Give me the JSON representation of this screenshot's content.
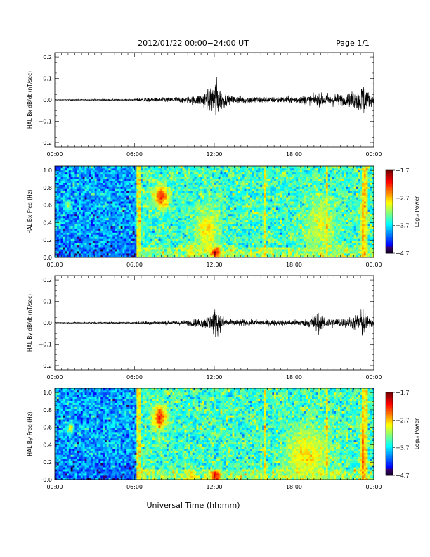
{
  "header": {
    "title": "2012/01/22  00:00−24:00 UT",
    "page": "Page 1/1"
  },
  "footer": {
    "xlabel": "Universal Time (hh:mm)"
  },
  "chart_data": [
    {
      "type": "line",
      "ylabel": "HAL Bx dB/dt (nT/sec)",
      "ylim": [
        -0.22,
        0.22
      ],
      "yticks": [
        -0.2,
        -0.1,
        0.0,
        0.1,
        0.2
      ],
      "ytick_labels": [
        "−0.2",
        "−0.1",
        "0.0",
        "0.1",
        "0.2"
      ],
      "xlim": [
        0,
        24
      ],
      "xticks": [
        0,
        6,
        12,
        18,
        24
      ],
      "xtick_labels": [
        "00:00",
        "06:00",
        "12:00",
        "18:00",
        "00:00"
      ],
      "series_color": "#000000",
      "activity": [
        {
          "t": 0,
          "amp": 0.001
        },
        {
          "t": 6.0,
          "amp": 0.002
        },
        {
          "t": 6.3,
          "amp": 0.004
        },
        {
          "t": 8.0,
          "amp": 0.005
        },
        {
          "t": 10.0,
          "amp": 0.008
        },
        {
          "t": 11.0,
          "amp": 0.014
        },
        {
          "t": 11.8,
          "amp": 0.03
        },
        {
          "t": 12.1,
          "amp": 0.055
        },
        {
          "t": 12.4,
          "amp": 0.03
        },
        {
          "t": 13.0,
          "amp": 0.01
        },
        {
          "t": 15.0,
          "amp": 0.008
        },
        {
          "t": 17.0,
          "amp": 0.007
        },
        {
          "t": 19.0,
          "amp": 0.01
        },
        {
          "t": 20.5,
          "amp": 0.016
        },
        {
          "t": 22.0,
          "amp": 0.012
        },
        {
          "t": 23.0,
          "amp": 0.03
        },
        {
          "t": 23.2,
          "amp": 0.045
        },
        {
          "t": 23.5,
          "amp": 0.02
        },
        {
          "t": 24.0,
          "amp": 0.01
        }
      ]
    },
    {
      "type": "heatmap",
      "ylabel": "HAL Bx Freq (Hz)",
      "ylim": [
        0,
        1.05
      ],
      "yticks": [
        0.0,
        0.2,
        0.4,
        0.6,
        0.8,
        1.0
      ],
      "ytick_labels": [
        "0.0",
        "0.2",
        "0.4",
        "0.6",
        "0.8",
        "1.0"
      ],
      "xlim": [
        0,
        24
      ],
      "xticks": [
        0,
        6,
        12,
        18,
        24
      ],
      "xtick_labels": [
        "00:00",
        "06:00",
        "12:00",
        "18:00",
        "00:00"
      ],
      "colorbar": {
        "label": "Log₁₀ Power",
        "range": [
          -4.7,
          -1.7
        ],
        "ticks": [
          -1.7,
          -2.7,
          -3.7,
          -4.7
        ],
        "tick_labels": [
          "−1.7",
          "−2.7",
          "−3.7",
          "−4.7"
        ]
      },
      "features": [
        {
          "t": 8.0,
          "f": 0.7,
          "dt": 0.5,
          "df": 0.12,
          "level": -2.1
        },
        {
          "t": 12.1,
          "f": 0.06,
          "dt": 0.35,
          "df": 0.06,
          "level": -1.9
        },
        {
          "t": 11.5,
          "f": 0.3,
          "dt": 0.8,
          "df": 0.25,
          "level": -2.8
        },
        {
          "t": 10.2,
          "f": 0.08,
          "dt": 0.2,
          "df": 0.08,
          "level": -2.7
        },
        {
          "t": 23.2,
          "f": 0.3,
          "dt": 0.2,
          "df": 0.5,
          "level": -2.6
        },
        {
          "t": 1.0,
          "f": 0.6,
          "dt": 0.25,
          "df": 0.05,
          "level": -3.0
        },
        {
          "t": 20.0,
          "f": 0.35,
          "dt": 1.2,
          "df": 0.3,
          "level": -3.0
        }
      ],
      "lines": [
        6.3,
        15.8,
        20.5,
        23.2,
        23.4
      ]
    },
    {
      "type": "line",
      "ylabel": "HAL By dB/dt (nT/sec)",
      "ylim": [
        -0.22,
        0.22
      ],
      "yticks": [
        -0.2,
        -0.1,
        0.0,
        0.1,
        0.2
      ],
      "ytick_labels": [
        "−0.2",
        "−0.1",
        "0.0",
        "0.1",
        "0.2"
      ],
      "xlim": [
        0,
        24
      ],
      "xticks": [
        0,
        6,
        12,
        18,
        24
      ],
      "xtick_labels": [
        "00:00",
        "06:00",
        "12:00",
        "18:00",
        "00:00"
      ],
      "series_color": "#000000",
      "activity": [
        {
          "t": 0,
          "amp": 0.001
        },
        {
          "t": 6.0,
          "amp": 0.002
        },
        {
          "t": 6.3,
          "amp": 0.004
        },
        {
          "t": 8.0,
          "amp": 0.004
        },
        {
          "t": 10.0,
          "amp": 0.006
        },
        {
          "t": 11.0,
          "amp": 0.01
        },
        {
          "t": 11.8,
          "amp": 0.02
        },
        {
          "t": 12.1,
          "amp": 0.035
        },
        {
          "t": 12.4,
          "amp": 0.02
        },
        {
          "t": 13.0,
          "amp": 0.008
        },
        {
          "t": 15.0,
          "amp": 0.007
        },
        {
          "t": 17.0,
          "amp": 0.006
        },
        {
          "t": 19.0,
          "amp": 0.008
        },
        {
          "t": 19.7,
          "amp": 0.025
        },
        {
          "t": 20.5,
          "amp": 0.012
        },
        {
          "t": 22.0,
          "amp": 0.01
        },
        {
          "t": 23.0,
          "amp": 0.025
        },
        {
          "t": 23.2,
          "amp": 0.04
        },
        {
          "t": 23.5,
          "amp": 0.015
        },
        {
          "t": 24.0,
          "amp": 0.008
        }
      ]
    },
    {
      "type": "heatmap",
      "ylabel": "HAL By Freq (Hz)",
      "ylim": [
        0,
        1.05
      ],
      "yticks": [
        0.0,
        0.2,
        0.4,
        0.6,
        0.8,
        1.0
      ],
      "ytick_labels": [
        "0.0",
        "0.2",
        "0.4",
        "0.6",
        "0.8",
        "1.0"
      ],
      "xlim": [
        0,
        24
      ],
      "xticks": [
        0,
        6,
        12,
        18,
        24
      ],
      "xtick_labels": [
        "00:00",
        "06:00",
        "12:00",
        "18:00",
        "00:00"
      ],
      "colorbar": {
        "label": "Log₁₀ Power",
        "range": [
          -4.7,
          -1.7
        ],
        "ticks": [
          -1.7,
          -2.7,
          -3.7,
          -4.7
        ],
        "tick_labels": [
          "−1.7",
          "−2.7",
          "−3.7",
          "−4.7"
        ]
      },
      "features": [
        {
          "t": 7.9,
          "f": 0.72,
          "dt": 0.5,
          "df": 0.14,
          "level": -2.2
        },
        {
          "t": 12.1,
          "f": 0.05,
          "dt": 0.35,
          "df": 0.06,
          "level": -2.0
        },
        {
          "t": 10.3,
          "f": 0.06,
          "dt": 0.2,
          "df": 0.06,
          "level": -2.7
        },
        {
          "t": 1.2,
          "f": 0.6,
          "dt": 0.25,
          "df": 0.05,
          "level": -3.0
        },
        {
          "t": 23.2,
          "f": 0.3,
          "dt": 0.2,
          "df": 0.5,
          "level": -2.4
        },
        {
          "t": 19.0,
          "f": 0.3,
          "dt": 1.5,
          "df": 0.3,
          "level": -2.8
        }
      ],
      "lines": [
        6.3,
        15.8,
        20.5,
        23.2,
        23.4
      ]
    }
  ]
}
